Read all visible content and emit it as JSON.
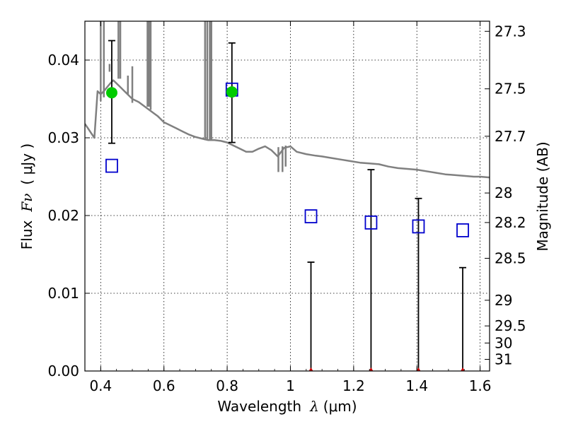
{
  "chart_data": {
    "type": "scatter",
    "title": "",
    "xlabel_prefix": "Wavelength",
    "xlabel_symbol": "λ",
    "xlabel_unit": "(μm)",
    "ylabel_prefix": "Flux",
    "ylabel_symbol": "Fν",
    "ylabel_unit": "( μJy )",
    "y2label": "Magnitude (AB)",
    "xlim": [
      0.35,
      1.63
    ],
    "ylim": [
      0.0,
      0.045
    ],
    "grid": true,
    "x_ticks": [
      0.4,
      0.6,
      0.8,
      1.0,
      1.2,
      1.4,
      1.6
    ],
    "x_tick_labels": [
      "0.4",
      "0.6",
      "0.8",
      "1",
      "1.2",
      "1.4",
      "1.6"
    ],
    "y_ticks": [
      0.0,
      0.01,
      0.02,
      0.03,
      0.04
    ],
    "y_tick_labels": [
      "0.00",
      "0.01",
      "0.02",
      "0.03",
      "0.04"
    ],
    "y2_ticks": [
      {
        "label": "27.3",
        "flux": 0.0437
      },
      {
        "label": "27.5",
        "flux": 0.0363
      },
      {
        "label": "27.7",
        "flux": 0.0302
      },
      {
        "label": "28",
        "flux": 0.0229
      },
      {
        "label": "28.2",
        "flux": 0.0191
      },
      {
        "label": "28.5",
        "flux": 0.0145
      },
      {
        "label": "29",
        "flux": 0.0091
      },
      {
        "label": "29.5",
        "flux": 0.0058
      },
      {
        "label": "30",
        "flux": 0.0036
      },
      {
        "label": "31",
        "flux": 0.0015
      }
    ],
    "series": [
      {
        "kind": "sed-model",
        "color": "#808080",
        "points": [
          [
            0.35,
            0.0318
          ],
          [
            0.36,
            0.0312
          ],
          [
            0.37,
            0.0306
          ],
          [
            0.38,
            0.03
          ],
          [
            0.39,
            0.036
          ],
          [
            0.4,
            0.0356
          ],
          [
            0.41,
            0.036
          ],
          [
            0.42,
            0.0365
          ],
          [
            0.43,
            0.037
          ],
          [
            0.44,
            0.0374
          ],
          [
            0.45,
            0.037
          ],
          [
            0.46,
            0.0366
          ],
          [
            0.47,
            0.0362
          ],
          [
            0.48,
            0.0358
          ],
          [
            0.49,
            0.0354
          ],
          [
            0.5,
            0.035
          ],
          [
            0.52,
            0.0346
          ],
          [
            0.54,
            0.034
          ],
          [
            0.56,
            0.0334
          ],
          [
            0.58,
            0.0328
          ],
          [
            0.6,
            0.032
          ],
          [
            0.62,
            0.0316
          ],
          [
            0.64,
            0.0312
          ],
          [
            0.66,
            0.0308
          ],
          [
            0.68,
            0.0304
          ],
          [
            0.7,
            0.0301
          ],
          [
            0.72,
            0.0299
          ],
          [
            0.74,
            0.0297
          ],
          [
            0.76,
            0.0297
          ],
          [
            0.78,
            0.0296
          ],
          [
            0.8,
            0.0294
          ],
          [
            0.82,
            0.029
          ],
          [
            0.84,
            0.0286
          ],
          [
            0.86,
            0.0282
          ],
          [
            0.88,
            0.0282
          ],
          [
            0.9,
            0.0286
          ],
          [
            0.92,
            0.0289
          ],
          [
            0.94,
            0.0284
          ],
          [
            0.96,
            0.0276
          ],
          [
            0.98,
            0.0287
          ],
          [
            1.0,
            0.0289
          ],
          [
            1.02,
            0.0282
          ],
          [
            1.05,
            0.0279
          ],
          [
            1.08,
            0.0277
          ],
          [
            1.1,
            0.0276
          ],
          [
            1.13,
            0.0274
          ],
          [
            1.16,
            0.0272
          ],
          [
            1.19,
            0.027
          ],
          [
            1.22,
            0.0268
          ],
          [
            1.25,
            0.0267
          ],
          [
            1.28,
            0.0266
          ],
          [
            1.31,
            0.0263
          ],
          [
            1.34,
            0.0261
          ],
          [
            1.37,
            0.026
          ],
          [
            1.4,
            0.0259
          ],
          [
            1.43,
            0.0257
          ],
          [
            1.46,
            0.0255
          ],
          [
            1.49,
            0.0253
          ],
          [
            1.52,
            0.0252
          ],
          [
            1.55,
            0.0251
          ],
          [
            1.58,
            0.025
          ],
          [
            1.6,
            0.025
          ],
          [
            1.63,
            0.0249
          ]
        ],
        "spikes": [
          {
            "x": 0.4,
            "from": 0.0347,
            "to": 0.045
          },
          {
            "x": 0.41,
            "from": 0.0352,
            "to": 0.045
          },
          {
            "x": 0.428,
            "from": 0.0385,
            "to": 0.0395
          },
          {
            "x": 0.456,
            "from": 0.0376,
            "to": 0.045
          },
          {
            "x": 0.462,
            "from": 0.0376,
            "to": 0.045
          },
          {
            "x": 0.486,
            "from": 0.0355,
            "to": 0.038
          },
          {
            "x": 0.5,
            "from": 0.0345,
            "to": 0.0392
          },
          {
            "x": 0.548,
            "from": 0.034,
            "to": 0.045
          },
          {
            "x": 0.553,
            "from": 0.034,
            "to": 0.045
          },
          {
            "x": 0.558,
            "from": 0.0336,
            "to": 0.045
          },
          {
            "x": 0.73,
            "from": 0.0297,
            "to": 0.045
          },
          {
            "x": 0.737,
            "from": 0.0297,
            "to": 0.045
          },
          {
            "x": 0.745,
            "from": 0.0297,
            "to": 0.045
          },
          {
            "x": 0.75,
            "from": 0.0297,
            "to": 0.045
          },
          {
            "x": 0.962,
            "from": 0.0256,
            "to": 0.0288
          },
          {
            "x": 0.975,
            "from": 0.0256,
            "to": 0.0289
          },
          {
            "x": 0.985,
            "from": 0.0263,
            "to": 0.029
          }
        ]
      },
      {
        "kind": "model-photometry",
        "marker": "open-square",
        "color": "#0000cc",
        "points": [
          {
            "x": 0.435,
            "y": 0.0264
          },
          {
            "x": 0.815,
            "y": 0.0362
          },
          {
            "x": 1.065,
            "y": 0.0199
          },
          {
            "x": 1.255,
            "y": 0.0191
          },
          {
            "x": 1.405,
            "y": 0.0186
          },
          {
            "x": 1.545,
            "y": 0.0181
          }
        ]
      },
      {
        "kind": "detections",
        "marker": "filled-circle",
        "color": "#00cc00",
        "points": [
          {
            "x": 0.435,
            "y": 0.0358,
            "err_low": 0.0293,
            "err_high": 0.0425
          },
          {
            "x": 0.815,
            "y": 0.0359,
            "err_low": 0.0294,
            "err_high": 0.0422
          }
        ]
      },
      {
        "kind": "upper-limits",
        "marker": "triangle",
        "color": "#cc0000",
        "points": [
          {
            "x": 1.065,
            "y": 0.0,
            "err_high": 0.014
          },
          {
            "x": 1.255,
            "y": 0.0,
            "err_high": 0.0259
          },
          {
            "x": 1.405,
            "y": 0.0,
            "err_high": 0.0222
          },
          {
            "x": 1.545,
            "y": 0.0,
            "err_high": 0.0133
          }
        ]
      }
    ]
  }
}
